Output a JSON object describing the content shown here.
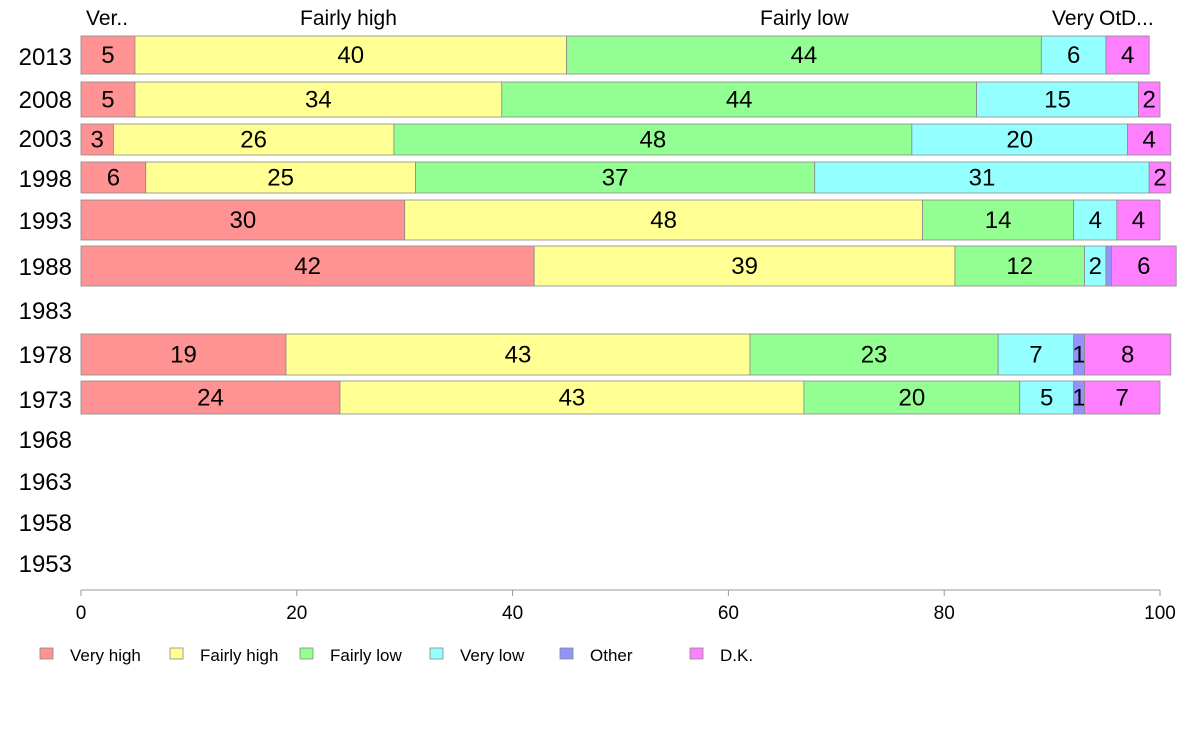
{
  "chart_data": {
    "type": "bar",
    "orientation": "horizontal",
    "stacked": true,
    "title": "",
    "xlabel": "",
    "ylabel": "",
    "xlim": [
      0,
      100
    ],
    "x_ticks": [
      0,
      20,
      40,
      60,
      80,
      100
    ],
    "grid": false,
    "legend_position": "bottom",
    "categories": [
      "2013",
      "2008",
      "2003",
      "1998",
      "1993",
      "1988",
      "1983",
      "1978",
      "1973",
      "1968",
      "1963",
      "1958",
      "1953"
    ],
    "top_labels": [
      "Ver..",
      "Fairly high",
      "Fairly low",
      "Very",
      "Ot",
      "D..."
    ],
    "series": [
      {
        "name": "Very high",
        "color": "#ff9393",
        "values": [
          5,
          5,
          3,
          6,
          30,
          42,
          null,
          19,
          24,
          null,
          null,
          null,
          null
        ]
      },
      {
        "name": "Fairly high",
        "color": "#ffff93",
        "values": [
          40,
          34,
          26,
          25,
          48,
          39,
          null,
          43,
          43,
          null,
          null,
          null,
          null
        ]
      },
      {
        "name": "Fairly low",
        "color": "#93ff93",
        "values": [
          44,
          44,
          48,
          37,
          14,
          12,
          null,
          23,
          20,
          null,
          null,
          null,
          null
        ]
      },
      {
        "name": "Very low",
        "color": "#93ffff",
        "values": [
          6,
          15,
          20,
          31,
          4,
          2,
          null,
          7,
          5,
          null,
          null,
          null,
          null
        ]
      },
      {
        "name": "Other",
        "color": "#9393ff",
        "values": [
          0,
          0,
          0,
          0,
          0,
          0.5,
          null,
          1,
          1,
          null,
          null,
          null,
          null
        ]
      },
      {
        "name": "D.K.",
        "color": "#ff80ff",
        "values": [
          4,
          2,
          4,
          2,
          4,
          6,
          null,
          8,
          7,
          null,
          null,
          null,
          null
        ]
      }
    ]
  }
}
